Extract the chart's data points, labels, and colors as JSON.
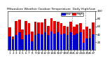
{
  "title": "Milwaukee Weather Outdoor Temperature  Daily High/Low",
  "days": [
    "1",
    "2",
    "3",
    "4",
    "5",
    "6",
    "7",
    "8",
    "9",
    "10",
    "11",
    "12",
    "13",
    "14",
    "15",
    "16",
    "17",
    "18",
    "19",
    "20",
    "21",
    "22",
    "23",
    "24",
    "25",
    "26",
    "27"
  ],
  "highs": [
    58,
    35,
    75,
    78,
    52,
    75,
    68,
    48,
    72,
    70,
    70,
    80,
    62,
    82,
    75,
    72,
    68,
    62,
    60,
    72,
    60,
    65,
    68,
    52,
    60,
    55,
    70
  ],
  "lows": [
    35,
    28,
    38,
    45,
    28,
    38,
    40,
    22,
    38,
    42,
    40,
    45,
    38,
    48,
    42,
    45,
    40,
    42,
    38,
    45,
    38,
    42,
    45,
    18,
    30,
    32,
    40
  ],
  "high_color": "#dd0000",
  "low_color": "#0000cc",
  "bg_color": "#ffffff",
  "ylim_min": 0,
  "ylim_max": 100,
  "ytick_vals": [
    20,
    40,
    60,
    80,
    100
  ],
  "bar_width": 0.8,
  "legend_high": "High",
  "legend_low": "Low",
  "dashed_lines": [
    19.5,
    23.5
  ]
}
